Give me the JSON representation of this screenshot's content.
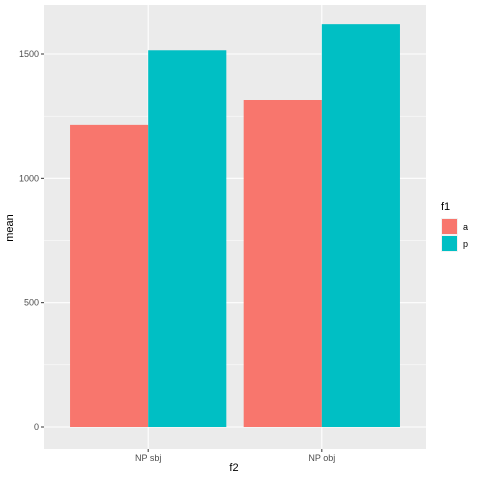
{
  "chart_data": {
    "type": "bar",
    "categories": [
      "NP sbj",
      "NP obj"
    ],
    "series": [
      {
        "name": "a",
        "values": [
          1215,
          1315
        ],
        "color": "#F8766D"
      },
      {
        "name": "p",
        "values": [
          1515,
          1620
        ],
        "color": "#00BFC4"
      }
    ],
    "xlabel": "f2",
    "ylabel": "mean",
    "ylim": [
      -60,
      1700
    ],
    "yticks": [
      0,
      500,
      1000,
      1500
    ],
    "ytick_labels": [
      "0",
      "500",
      "1000",
      "1500"
    ],
    "grid": true,
    "legend": {
      "title": "f1",
      "position": "right"
    },
    "panel_background": "#EBEBEB"
  }
}
